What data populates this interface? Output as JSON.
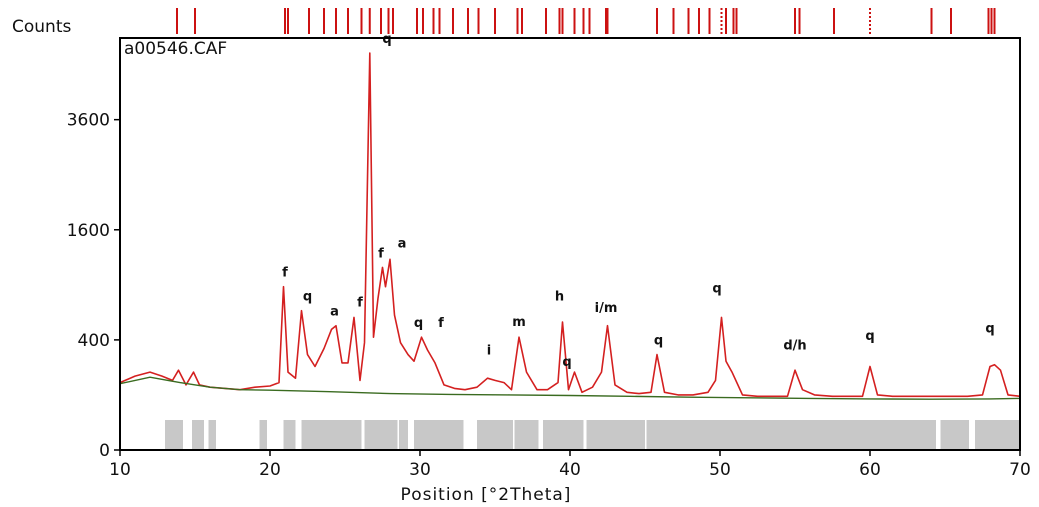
{
  "chart_data": {
    "type": "line",
    "title": "",
    "ylabel": "Counts",
    "xlabel": "Position [°2Theta]",
    "sample_name": "a00546.CAF",
    "xlim": [
      10,
      70
    ],
    "x_ticks": [
      10,
      20,
      30,
      40,
      50,
      60,
      70
    ],
    "y_ticks": [
      {
        "label": "0",
        "value": 0
      },
      {
        "label": "400",
        "value": 400
      },
      {
        "label": "1600",
        "value": 1600
      },
      {
        "label": "3600",
        "value": 3600
      }
    ],
    "y_scale": "sqrt",
    "ylim": [
      0,
      5600
    ],
    "colors": {
      "pattern": "#d42020",
      "background": "#3a6b20",
      "frame": "#000000",
      "residual": "#c8c8c8",
      "reference_lines": "#cc1111"
    },
    "series": [
      {
        "name": "",
        "x": [
          10,
          11,
          12,
          12.8,
          13.5,
          13.9,
          14.4,
          14.9,
          15.3,
          16,
          17,
          18,
          19,
          20,
          20.6,
          20.9,
          21.2,
          21.7,
          22.1,
          22.5,
          23,
          23.6,
          24.1,
          24.4,
          24.8,
          25.2,
          25.6,
          26,
          26.3,
          26.65,
          26.9,
          27.2,
          27.5,
          27.7,
          28,
          28.3,
          28.7,
          29.2,
          29.6,
          30.1,
          30.5,
          31,
          31.6,
          32.3,
          33,
          33.8,
          34.5,
          35,
          35.6,
          36.1,
          36.6,
          37.1,
          37.8,
          38.5,
          39.2,
          39.5,
          39.9,
          40.3,
          40.8,
          41.5,
          42.1,
          42.5,
          43,
          43.8,
          44.6,
          45.4,
          45.8,
          46.3,
          47.2,
          48.2,
          49.2,
          49.7,
          50.1,
          50.4,
          50.8,
          51.5,
          52.5,
          53.5,
          54.5,
          55,
          55.5,
          56.3,
          57.5,
          58.5,
          59.5,
          60,
          60.5,
          61.5,
          62.5,
          63.5,
          64.5,
          65.5,
          66.5,
          67.5,
          68,
          68.3,
          68.7,
          69.2,
          70
        ],
        "y": [
          150,
          180,
          200,
          180,
          160,
          210,
          140,
          200,
          140,
          130,
          125,
          120,
          130,
          135,
          150,
          880,
          200,
          170,
          640,
          300,
          230,
          340,
          480,
          510,
          250,
          250,
          580,
          160,
          380,
          5200,
          420,
          760,
          1100,
          880,
          1200,
          600,
          380,
          300,
          260,
          420,
          330,
          250,
          140,
          125,
          120,
          130,
          170,
          160,
          150,
          120,
          420,
          200,
          120,
          120,
          150,
          540,
          120,
          200,
          110,
          130,
          200,
          510,
          140,
          110,
          105,
          110,
          300,
          110,
          100,
          100,
          110,
          160,
          580,
          260,
          200,
          100,
          95,
          95,
          95,
          210,
          120,
          100,
          95,
          95,
          95,
          230,
          100,
          95,
          95,
          95,
          95,
          95,
          95,
          100,
          230,
          240,
          210,
          100,
          95
        ]
      }
    ],
    "background_curve": {
      "x": [
        10,
        12,
        14,
        16,
        18,
        20,
        24,
        28,
        32,
        36,
        40,
        44,
        48,
        52,
        56,
        60,
        64,
        68,
        70
      ],
      "y": [
        145,
        175,
        150,
        130,
        120,
        118,
        112,
        105,
        102,
        100,
        98,
        95,
        92,
        90,
        88,
        86,
        85,
        86,
        88
      ]
    },
    "residual_bands": [
      [
        13.0,
        14.2
      ],
      [
        14.8,
        15.6
      ],
      [
        15.9,
        16.4
      ],
      [
        19.3,
        19.8
      ],
      [
        20.9,
        21.7
      ],
      [
        22.1,
        26.1
      ],
      [
        26.3,
        28.5
      ],
      [
        28.6,
        29.2
      ],
      [
        29.6,
        32.9
      ],
      [
        33.8,
        36.2
      ],
      [
        36.3,
        37.9
      ],
      [
        38.2,
        40.9
      ],
      [
        41.1,
        45.0
      ],
      [
        45.1,
        64.4
      ],
      [
        64.7,
        66.6
      ],
      [
        67.0,
        70.0
      ]
    ],
    "reference_lines": [
      {
        "x": 13.8
      },
      {
        "x": 15.0
      },
      {
        "x": 21.0
      },
      {
        "x": 21.2
      },
      {
        "x": 22.6
      },
      {
        "x": 23.6
      },
      {
        "x": 24.4
      },
      {
        "x": 25.2
      },
      {
        "x": 26.1
      },
      {
        "x": 26.65
      },
      {
        "x": 27.4
      },
      {
        "x": 27.9
      },
      {
        "x": 28.2
      },
      {
        "x": 29.8
      },
      {
        "x": 30.2
      },
      {
        "x": 30.9
      },
      {
        "x": 31.3
      },
      {
        "x": 32.2
      },
      {
        "x": 33.2
      },
      {
        "x": 33.9
      },
      {
        "x": 35.0
      },
      {
        "x": 36.5
      },
      {
        "x": 36.8
      },
      {
        "x": 38.4
      },
      {
        "x": 39.3
      },
      {
        "x": 39.5
      },
      {
        "x": 40.3
      },
      {
        "x": 40.9
      },
      {
        "x": 41.3
      },
      {
        "x": 42.4
      },
      {
        "x": 42.5
      },
      {
        "x": 45.8
      },
      {
        "x": 46.9
      },
      {
        "x": 47.9
      },
      {
        "x": 48.6
      },
      {
        "x": 49.3
      },
      {
        "x": 50.1,
        "dotted": true
      },
      {
        "x": 50.4
      },
      {
        "x": 50.9
      },
      {
        "x": 51.1
      },
      {
        "x": 55.0
      },
      {
        "x": 55.3
      },
      {
        "x": 57.6
      },
      {
        "x": 60.0,
        "dotted": true
      },
      {
        "x": 64.1
      },
      {
        "x": 65.4
      },
      {
        "x": 67.9
      },
      {
        "x": 68.1
      },
      {
        "x": 68.3
      }
    ],
    "peak_labels": [
      {
        "x": 21.0,
        "y": 880,
        "text": "f"
      },
      {
        "x": 22.5,
        "y": 640,
        "text": "q"
      },
      {
        "x": 24.3,
        "y": 510,
        "text": "a"
      },
      {
        "x": 26.0,
        "y": 590,
        "text": "f"
      },
      {
        "x": 27.4,
        "y": 1100,
        "text": "f"
      },
      {
        "x": 28.8,
        "y": 1220,
        "text": "a"
      },
      {
        "x": 27.8,
        "y": 5200,
        "text": "q"
      },
      {
        "x": 29.9,
        "y": 420,
        "text": "q"
      },
      {
        "x": 31.4,
        "y": 420,
        "text": "f"
      },
      {
        "x": 34.6,
        "y": 240,
        "text": "i"
      },
      {
        "x": 36.6,
        "y": 430,
        "text": "m"
      },
      {
        "x": 39.3,
        "y": 640,
        "text": "h"
      },
      {
        "x": 39.8,
        "y": 180,
        "text": "q"
      },
      {
        "x": 42.4,
        "y": 540,
        "text": "i/m"
      },
      {
        "x": 45.9,
        "y": 300,
        "text": "q"
      },
      {
        "x": 49.8,
        "y": 720,
        "text": "q"
      },
      {
        "x": 55.0,
        "y": 270,
        "text": "d/h"
      },
      {
        "x": 60.0,
        "y": 330,
        "text": "q"
      },
      {
        "x": 68.0,
        "y": 380,
        "text": "q"
      }
    ]
  }
}
